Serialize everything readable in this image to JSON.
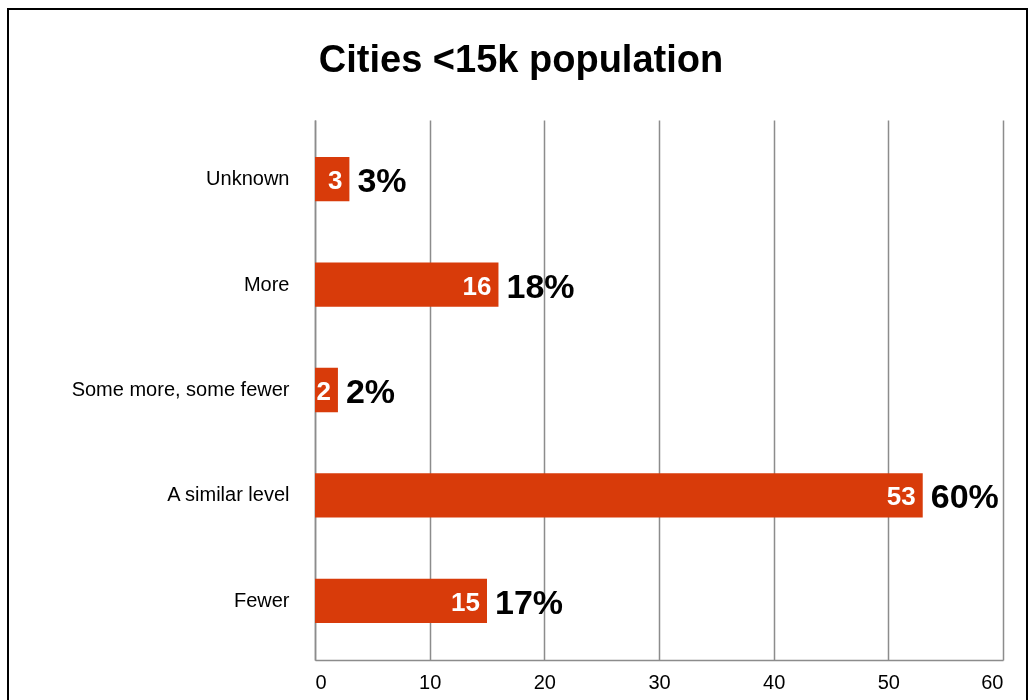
{
  "chart_data": {
    "type": "bar",
    "orientation": "horizontal",
    "title": "Cities <15k population",
    "categories": [
      "Unknown",
      "More",
      "Some more, some fewer",
      "A similar level",
      "Fewer"
    ],
    "values": [
      3,
      16,
      2,
      53,
      15
    ],
    "color": "#d83b0a",
    "xlim": [
      0,
      60
    ],
    "xticks": [
      0,
      10,
      20,
      30,
      40,
      50,
      60
    ],
    "grid": "x",
    "data_labels": true,
    "annotations": [
      {
        "text": "3%",
        "x": 3,
        "y": "Unknown"
      },
      {
        "text": "18%",
        "x": 16,
        "y": "More"
      },
      {
        "text": "2%",
        "x": 2,
        "y": "Some more, some fewer"
      },
      {
        "text": "60%",
        "x": 53,
        "y": "A similar level"
      },
      {
        "text": "17%",
        "x": 15,
        "y": "Fewer"
      }
    ]
  }
}
